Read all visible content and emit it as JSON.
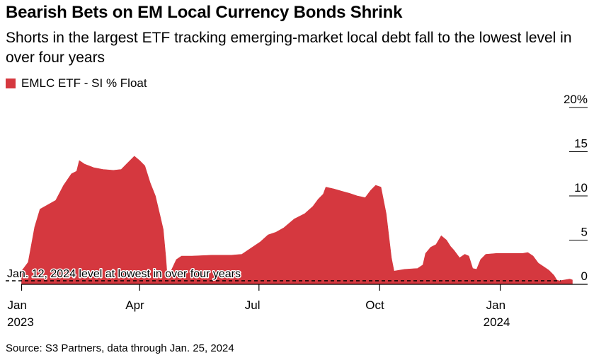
{
  "chart_data": {
    "type": "area",
    "title": "Bearish Bets on EM Local Currency Bonds Shrink",
    "subtitle": "Shorts in the largest ETF tracking emerging-market local debt fall to the lowest level in over four years",
    "legend": [
      {
        "label": "EMLC ETF - SI % Float",
        "color": "#d5383f"
      }
    ],
    "ylim": [
      0,
      20
    ],
    "y_ticks": [
      {
        "value": 20,
        "label": "20%"
      },
      {
        "value": 15,
        "label": "15"
      },
      {
        "value": 10,
        "label": "10"
      },
      {
        "value": 5,
        "label": "5"
      },
      {
        "value": 0,
        "label": "0"
      }
    ],
    "x_unit": "days since Jan 1, 2023",
    "xlim": [
      -10,
      410
    ],
    "x_ticks": [
      {
        "value": 0,
        "label": "Jan",
        "sublabel": "2023"
      },
      {
        "value": 90,
        "label": "Apr",
        "sublabel": ""
      },
      {
        "value": 181,
        "label": "Jul",
        "sublabel": ""
      },
      {
        "value": 273,
        "label": "Oct",
        "sublabel": ""
      },
      {
        "value": 365,
        "label": "Jan",
        "sublabel": "2024"
      }
    ],
    "series": [
      {
        "name": "EMLC ETF - SI % Float",
        "color": "#d5383f",
        "points": [
          [
            0,
            1.5
          ],
          [
            5,
            2.5
          ],
          [
            10,
            6.5
          ],
          [
            14,
            8.5
          ],
          [
            20,
            9.0
          ],
          [
            26,
            9.5
          ],
          [
            32,
            11.2
          ],
          [
            38,
            12.5
          ],
          [
            42,
            12.8
          ],
          [
            44,
            14.0
          ],
          [
            48,
            13.6
          ],
          [
            55,
            13.2
          ],
          [
            62,
            13.0
          ],
          [
            70,
            12.9
          ],
          [
            76,
            13.0
          ],
          [
            80,
            13.6
          ],
          [
            86,
            14.5
          ],
          [
            90,
            14.0
          ],
          [
            94,
            13.4
          ],
          [
            98,
            11.5
          ],
          [
            102,
            10.0
          ],
          [
            106,
            7.5
          ],
          [
            108,
            6.2
          ],
          [
            110,
            3.0
          ],
          [
            111,
            1.0
          ],
          [
            113,
            1.2
          ],
          [
            118,
            2.8
          ],
          [
            122,
            3.2
          ],
          [
            130,
            3.2
          ],
          [
            145,
            3.3
          ],
          [
            160,
            3.3
          ],
          [
            168,
            3.4
          ],
          [
            176,
            4.2
          ],
          [
            182,
            4.8
          ],
          [
            188,
            5.6
          ],
          [
            194,
            5.9
          ],
          [
            200,
            6.4
          ],
          [
            208,
            7.4
          ],
          [
            216,
            8.0
          ],
          [
            222,
            8.8
          ],
          [
            226,
            9.6
          ],
          [
            230,
            10.2
          ],
          [
            232,
            11.0
          ],
          [
            238,
            10.8
          ],
          [
            245,
            10.5
          ],
          [
            250,
            10.3
          ],
          [
            256,
            10.0
          ],
          [
            262,
            9.8
          ],
          [
            266,
            10.6
          ],
          [
            270,
            11.2
          ],
          [
            274,
            11.0
          ],
          [
            278,
            8.0
          ],
          [
            282,
            3.0
          ],
          [
            284,
            1.5
          ],
          [
            292,
            1.7
          ],
          [
            302,
            1.8
          ],
          [
            306,
            2.2
          ],
          [
            308,
            3.5
          ],
          [
            312,
            4.2
          ],
          [
            316,
            4.5
          ],
          [
            320,
            5.5
          ],
          [
            324,
            5.0
          ],
          [
            327,
            4.3
          ],
          [
            330,
            3.8
          ],
          [
            334,
            3.0
          ],
          [
            338,
            3.4
          ],
          [
            341,
            3.2
          ],
          [
            344,
            1.8
          ],
          [
            347,
            1.7
          ],
          [
            350,
            2.8
          ],
          [
            354,
            3.4
          ],
          [
            362,
            3.5
          ],
          [
            372,
            3.5
          ],
          [
            382,
            3.5
          ],
          [
            386,
            3.6
          ],
          [
            390,
            3.2
          ],
          [
            394,
            2.4
          ],
          [
            398,
            2.0
          ],
          [
            402,
            1.6
          ],
          [
            406,
            1.0
          ],
          [
            408,
            0.5
          ],
          [
            410,
            0.4
          ],
          [
            418,
            0.6
          ],
          [
            420,
            0.5
          ]
        ]
      }
    ],
    "reference_line": {
      "value": 0.4,
      "style": "dashed",
      "label": "Jan. 12, 2024 level at lowest in over four years"
    },
    "source": "Source: S3 Partners, data through Jan. 25, 2024"
  }
}
